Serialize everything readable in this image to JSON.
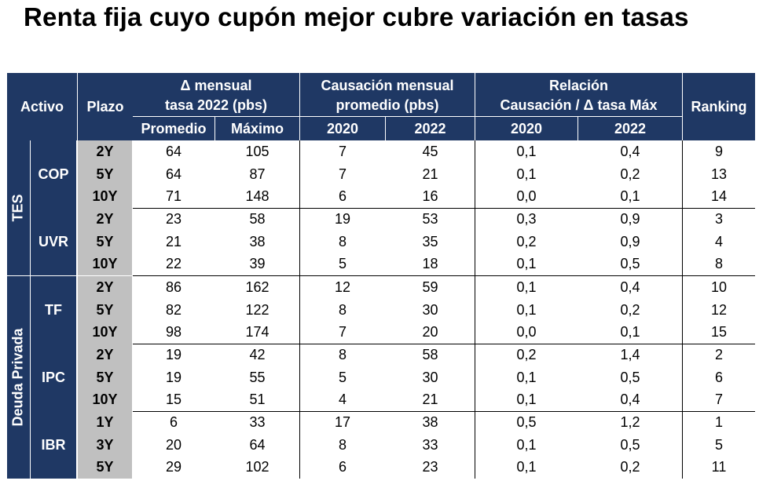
{
  "title": "Renta fija cuyo cupón mejor cubre variación en tasas",
  "header": {
    "activo": "Activo",
    "plazo": "Plazo",
    "delta_group_l1": "Δ mensual",
    "delta_group_l2": "tasa 2022 (pbs)",
    "caus_group_l1": "Causación mensual",
    "caus_group_l2": "promedio (pbs)",
    "rel_group_l1": "Relación",
    "rel_group_l2": "Causación / Δ tasa Máx",
    "ranking": "Ranking",
    "promedio": "Promedio",
    "maximo": "Máximo",
    "caus_2020": "2020",
    "caus_2022": "2022",
    "rel_2020": "2020",
    "rel_2022": "2022"
  },
  "groups": [
    {
      "label": "TES",
      "assets": [
        {
          "name": "COP",
          "rows": [
            {
              "plazo": "2Y",
              "promedio": "64",
              "maximo": "105",
              "c2020": "7",
              "c2022": "45",
              "r2020": "0,1",
              "r2022": "0,4",
              "ranking": "9"
            },
            {
              "plazo": "5Y",
              "promedio": "64",
              "maximo": "87",
              "c2020": "7",
              "c2022": "21",
              "r2020": "0,1",
              "r2022": "0,2",
              "ranking": "13"
            },
            {
              "plazo": "10Y",
              "promedio": "71",
              "maximo": "148",
              "c2020": "6",
              "c2022": "16",
              "r2020": "0,0",
              "r2022": "0,1",
              "ranking": "14"
            }
          ]
        },
        {
          "name": "UVR",
          "rows": [
            {
              "plazo": "2Y",
              "promedio": "23",
              "maximo": "58",
              "c2020": "19",
              "c2022": "53",
              "r2020": "0,3",
              "r2022": "0,9",
              "ranking": "3"
            },
            {
              "plazo": "5Y",
              "promedio": "21",
              "maximo": "38",
              "c2020": "8",
              "c2022": "35",
              "r2020": "0,2",
              "r2022": "0,9",
              "ranking": "4"
            },
            {
              "plazo": "10Y",
              "promedio": "22",
              "maximo": "39",
              "c2020": "5",
              "c2022": "18",
              "r2020": "0,1",
              "r2022": "0,5",
              "ranking": "8"
            }
          ]
        }
      ]
    },
    {
      "label": "Deuda Privada",
      "assets": [
        {
          "name": "TF",
          "rows": [
            {
              "plazo": "2Y",
              "promedio": "86",
              "maximo": "162",
              "c2020": "12",
              "c2022": "59",
              "r2020": "0,1",
              "r2022": "0,4",
              "ranking": "10"
            },
            {
              "plazo": "5Y",
              "promedio": "82",
              "maximo": "122",
              "c2020": "8",
              "c2022": "30",
              "r2020": "0,1",
              "r2022": "0,2",
              "ranking": "12"
            },
            {
              "plazo": "10Y",
              "promedio": "98",
              "maximo": "174",
              "c2020": "7",
              "c2022": "20",
              "r2020": "0,0",
              "r2022": "0,1",
              "ranking": "15"
            }
          ]
        },
        {
          "name": "IPC",
          "rows": [
            {
              "plazo": "2Y",
              "promedio": "19",
              "maximo": "42",
              "c2020": "8",
              "c2022": "58",
              "r2020": "0,2",
              "r2022": "1,4",
              "ranking": "2"
            },
            {
              "plazo": "5Y",
              "promedio": "19",
              "maximo": "55",
              "c2020": "5",
              "c2022": "30",
              "r2020": "0,1",
              "r2022": "0,5",
              "ranking": "6"
            },
            {
              "plazo": "10Y",
              "promedio": "15",
              "maximo": "51",
              "c2020": "4",
              "c2022": "21",
              "r2020": "0,1",
              "r2022": "0,4",
              "ranking": "7"
            }
          ]
        },
        {
          "name": "IBR",
          "rows": [
            {
              "plazo": "1Y",
              "promedio": "6",
              "maximo": "33",
              "c2020": "17",
              "c2022": "38",
              "r2020": "0,5",
              "r2022": "1,2",
              "ranking": "1"
            },
            {
              "plazo": "3Y",
              "promedio": "20",
              "maximo": "64",
              "c2020": "8",
              "c2022": "33",
              "r2020": "0,1",
              "r2022": "0,5",
              "ranking": "5"
            },
            {
              "plazo": "5Y",
              "promedio": "29",
              "maximo": "102",
              "c2020": "6",
              "c2022": "23",
              "r2020": "0,1",
              "r2022": "0,2",
              "ranking": "11"
            }
          ]
        }
      ]
    }
  ],
  "colors": {
    "header_bg": "#1f3864",
    "header_text": "#ffffff",
    "plazo_bg": "#c0c0c0"
  }
}
